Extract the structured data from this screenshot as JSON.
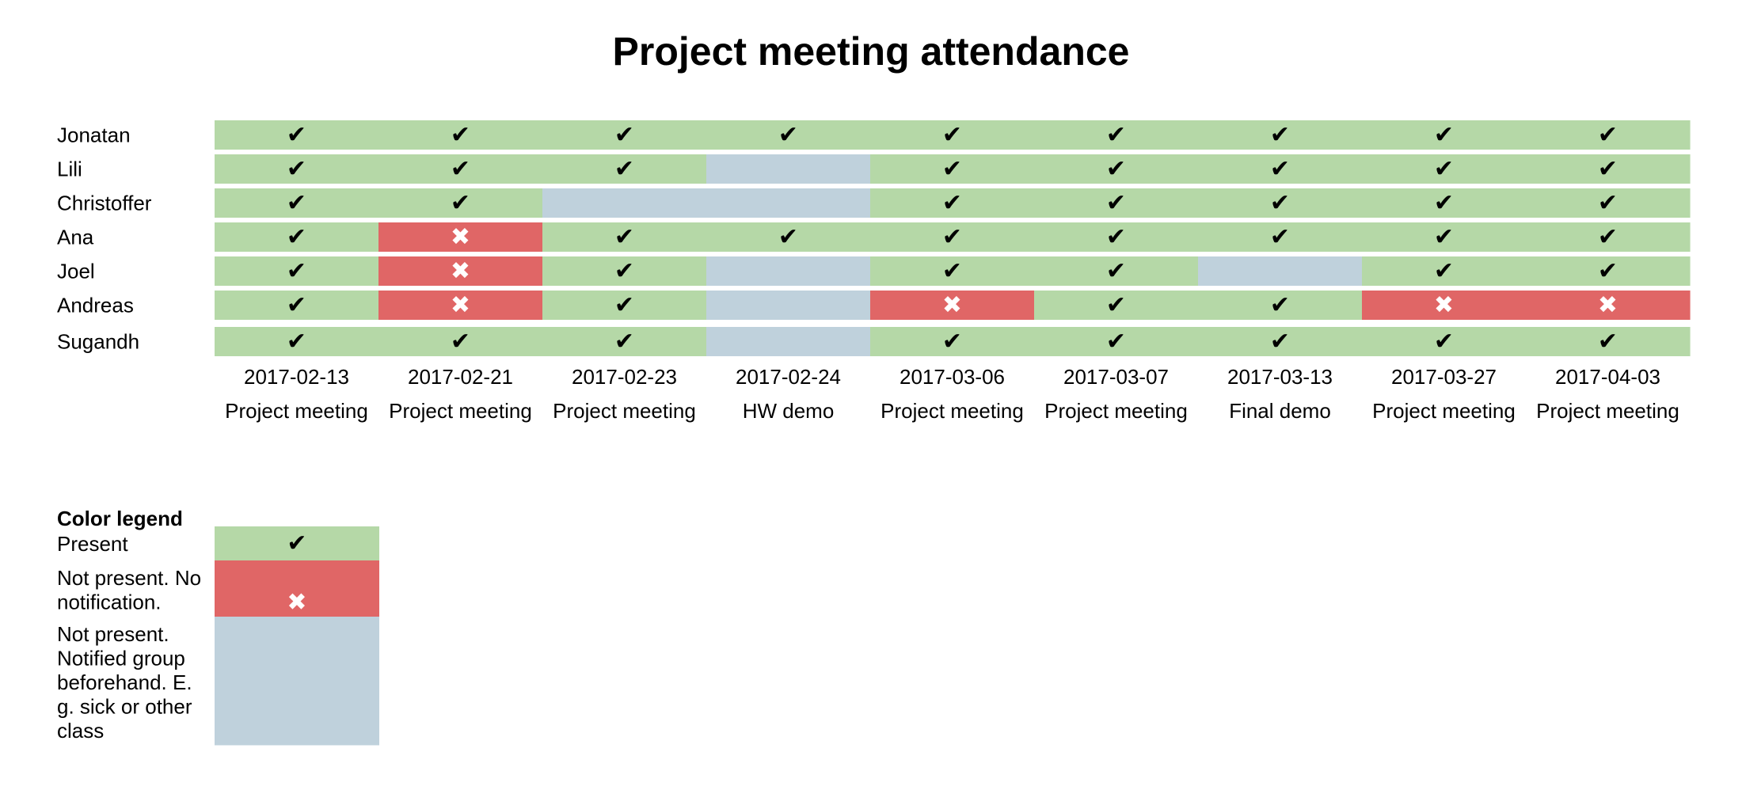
{
  "chart_data": {
    "type": "heatmap",
    "title": "Project meeting attendance",
    "people": [
      "Jonatan",
      "Lili",
      "Christoffer",
      "Ana",
      "Joel",
      "Andreas",
      "Sugandh"
    ],
    "dates": [
      "2017-02-13",
      "2017-02-21",
      "2017-02-23",
      "2017-02-24",
      "2017-03-06",
      "2017-03-07",
      "2017-03-13",
      "2017-03-27",
      "2017-04-03"
    ],
    "events": [
      "Project meeting",
      "Project meeting",
      "Project meeting",
      "HW demo",
      "Project meeting",
      "Project meeting",
      "Final demo",
      "Project meeting",
      "Project meeting"
    ],
    "status_codes": {
      "P": "present",
      "N": "absent_no_notice",
      "X": "absent_notified"
    },
    "attendance": [
      [
        "P",
        "P",
        "P",
        "P",
        "P",
        "P",
        "P",
        "P",
        "P"
      ],
      [
        "P",
        "P",
        "P",
        "X",
        "P",
        "P",
        "P",
        "P",
        "P"
      ],
      [
        "P",
        "P",
        "X",
        "X",
        "P",
        "P",
        "P",
        "P",
        "P"
      ],
      [
        "P",
        "N",
        "P",
        "P",
        "P",
        "P",
        "P",
        "P",
        "P"
      ],
      [
        "P",
        "N",
        "P",
        "X",
        "P",
        "P",
        "X",
        "P",
        "P"
      ],
      [
        "P",
        "N",
        "P",
        "X",
        "N",
        "P",
        "P",
        "N",
        "N"
      ],
      [
        "P",
        "P",
        "P",
        "X",
        "P",
        "P",
        "P",
        "P",
        "P"
      ]
    ],
    "colors": {
      "present": "#b5d8a7",
      "absent_no_notice": "#e06666",
      "absent_notified": "#bfd1dc"
    },
    "symbols": {
      "present": "✔",
      "absent_no_notice": "✖",
      "absent_notified": ""
    },
    "symbol_colors": {
      "present": "#000000",
      "absent_no_notice": "#ffffff"
    },
    "legend": {
      "title": "Color legend",
      "items": [
        {
          "status": "present",
          "lines": [
            "Present"
          ]
        },
        {
          "status": "absent_no_notice",
          "lines": [
            "Not present. No",
            "notification."
          ]
        },
        {
          "status": "absent_notified",
          "lines": [
            "Not present.",
            "Notified group",
            "beforehand. E.",
            "g. sick or other",
            "class"
          ]
        }
      ]
    }
  }
}
